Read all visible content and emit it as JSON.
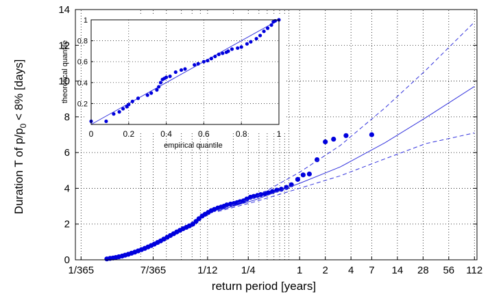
{
  "chart_data": [
    {
      "type": "scatter",
      "xscale": "log",
      "xlabel": "return period [years]",
      "ylabel_main": "Duration T of p/p",
      "ylabel_sub": "0",
      "ylabel_rest": " < 8% [days]",
      "xlim": [
        0.00235,
        120
      ],
      "ylim": [
        0,
        14
      ],
      "grid": true,
      "x_ticks": [
        {
          "v": 0.0027397,
          "label": "1/365"
        },
        {
          "v": 0.0191781,
          "label": "7/365"
        },
        {
          "v": 0.0833333,
          "label": "1/12"
        },
        {
          "v": 0.25,
          "label": "1/4"
        },
        {
          "v": 1,
          "label": "1"
        },
        {
          "v": 2,
          "label": "2"
        },
        {
          "v": 4,
          "label": "4"
        },
        {
          "v": 7,
          "label": "7"
        },
        {
          "v": 14,
          "label": "14"
        },
        {
          "v": 28,
          "label": "28"
        },
        {
          "v": 56,
          "label": "56"
        },
        {
          "v": 112,
          "label": "112"
        }
      ],
      "x_minor_grid": [
        0.0137,
        0.0274,
        0.0411,
        0.0548,
        0.0685,
        0.1667,
        0.3333,
        0.4167,
        0.5,
        0.5833,
        0.6667,
        0.75
      ],
      "y_ticks": [
        0,
        2,
        4,
        6,
        8,
        10,
        12,
        14
      ],
      "series": [
        {
          "style": "points",
          "color": "#0000dd",
          "x": [
            0.0055,
            0.006,
            0.0065,
            0.007,
            0.0076,
            0.0083,
            0.009,
            0.0098,
            0.0107,
            0.0117,
            0.0128,
            0.014,
            0.0153,
            0.0167,
            0.0182,
            0.0198,
            0.0216,
            0.0235,
            0.0256,
            0.028,
            0.0305,
            0.0333,
            0.0363,
            0.0395,
            0.043,
            0.047,
            0.051,
            0.056,
            0.061,
            0.066,
            0.072,
            0.078,
            0.085,
            0.092,
            0.1,
            0.11,
            0.12,
            0.13,
            0.14,
            0.155,
            0.17,
            0.185,
            0.2,
            0.22,
            0.24,
            0.265,
            0.29,
            0.32,
            0.35,
            0.39,
            0.43,
            0.48,
            0.54,
            0.61,
            0.7,
            0.8,
            0.95,
            1.1,
            1.3,
            1.6,
            2.0,
            2.5,
            3.5,
            7.0
          ],
          "y": [
            0.05,
            0.08,
            0.1,
            0.13,
            0.17,
            0.21,
            0.26,
            0.31,
            0.37,
            0.43,
            0.5,
            0.57,
            0.64,
            0.72,
            0.8,
            0.88,
            0.97,
            1.06,
            1.16,
            1.26,
            1.36,
            1.46,
            1.56,
            1.65,
            1.74,
            1.82,
            1.9,
            2.0,
            2.15,
            2.3,
            2.45,
            2.55,
            2.65,
            2.75,
            2.82,
            2.9,
            2.95,
            3.0,
            3.07,
            3.12,
            3.15,
            3.2,
            3.25,
            3.3,
            3.4,
            3.5,
            3.55,
            3.6,
            3.65,
            3.7,
            3.75,
            3.82,
            3.9,
            3.95,
            4.05,
            4.2,
            4.5,
            4.75,
            4.8,
            5.6,
            6.6,
            6.75,
            6.95,
            7.0
          ]
        },
        {
          "style": "solid",
          "color": "#3333dd",
          "x": [
            0.11,
            0.3,
            1,
            3,
            10,
            30,
            112
          ],
          "y": [
            2.75,
            3.35,
            4.28,
            5.2,
            6.55,
            7.95,
            9.7
          ]
        },
        {
          "style": "dashed",
          "color": "#3333dd",
          "x": [
            0.11,
            0.3,
            1,
            3,
            10,
            30,
            112
          ],
          "y": [
            2.8,
            3.5,
            4.9,
            6.4,
            8.5,
            10.6,
            13.3
          ]
        },
        {
          "style": "dashed",
          "color": "#3333dd",
          "x": [
            0.11,
            0.3,
            1,
            3,
            10,
            30,
            112
          ],
          "y": [
            2.7,
            3.25,
            4.0,
            4.7,
            5.65,
            6.5,
            7.1
          ]
        }
      ]
    },
    {
      "type": "scatter",
      "inset": true,
      "xlabel": "empirical quantile",
      "ylabel": "theoretical quantile",
      "xlim": [
        0,
        1
      ],
      "ylim": [
        0,
        1
      ],
      "grid": true,
      "x_ticks": [
        0,
        0.2,
        0.4,
        0.6,
        0.8,
        1
      ],
      "x_tick_labels": [
        "0",
        "0.2",
        "0.4",
        "0.6",
        "0.8",
        "1"
      ],
      "y_ticks": [
        0.2,
        0.4,
        0.6,
        0.8,
        1
      ],
      "y_tick_labels": [
        "0.2",
        "0.4",
        "0.6",
        "0.8",
        "1"
      ],
      "reference_line": {
        "x": [
          0,
          1
        ],
        "y": [
          0,
          1
        ],
        "color": "#3333dd"
      },
      "points": {
        "color": "#0000dd",
        "x": [
          0.0,
          0.08,
          0.12,
          0.15,
          0.17,
          0.19,
          0.2,
          0.22,
          0.25,
          0.3,
          0.32,
          0.35,
          0.36,
          0.37,
          0.38,
          0.39,
          0.4,
          0.42,
          0.45,
          0.48,
          0.5,
          0.55,
          0.57,
          0.6,
          0.62,
          0.64,
          0.66,
          0.68,
          0.7,
          0.72,
          0.73,
          0.75,
          0.78,
          0.8,
          0.83,
          0.85,
          0.88,
          0.9,
          0.92,
          0.94,
          0.96,
          0.97,
          0.98,
          1.0
        ],
        "y": [
          0.03,
          0.03,
          0.1,
          0.12,
          0.15,
          0.17,
          0.19,
          0.22,
          0.25,
          0.28,
          0.3,
          0.33,
          0.36,
          0.4,
          0.43,
          0.44,
          0.45,
          0.46,
          0.5,
          0.52,
          0.53,
          0.57,
          0.58,
          0.6,
          0.61,
          0.63,
          0.65,
          0.67,
          0.68,
          0.69,
          0.7,
          0.72,
          0.73,
          0.74,
          0.77,
          0.79,
          0.82,
          0.85,
          0.89,
          0.92,
          0.95,
          0.98,
          0.99,
          1.0
        ]
      }
    }
  ]
}
